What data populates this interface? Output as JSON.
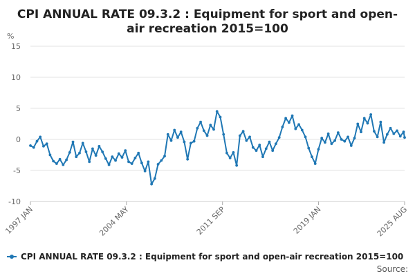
{
  "chart_data": {
    "type": "line",
    "title": "CPI ANNUAL RATE 09.3.2 : Equipment for sport and open-air recreation 2015=100",
    "title_lines": [
      "CPI ANNUAL RATE 09.3.2 : Equipment for sport and open-",
      "air recreation 2015=100"
    ],
    "ylabel": "%",
    "ylim": [
      -10,
      15
    ],
    "y_ticks": [
      15,
      10,
      5,
      0,
      -5,
      -10
    ],
    "x_tick_labels": [
      {
        "label": "1997 JAN",
        "t": 1997.0
      },
      {
        "label": "2004 MAY",
        "t": 2004.33
      },
      {
        "label": "2011 SEP",
        "t": 2011.67
      },
      {
        "label": "2019 JAN",
        "t": 2019.0
      },
      {
        "label": "2025 AUG",
        "t": 2025.58
      }
    ],
    "xlim": [
      1997.0,
      2025.58
    ],
    "grid": true,
    "series": [
      {
        "name": "CPI ANNUAL RATE 09.3.2 : Equipment for sport and open-air recreation 2015=100",
        "color": "#1f77b4",
        "points": [
          [
            1997.0,
            -1.0
          ],
          [
            1997.25,
            -1.3
          ],
          [
            1997.5,
            -0.3
          ],
          [
            1997.75,
            0.4
          ],
          [
            1998.0,
            -1.1
          ],
          [
            1998.25,
            -0.7
          ],
          [
            1998.5,
            -2.5
          ],
          [
            1998.75,
            -3.5
          ],
          [
            1999.0,
            -3.9
          ],
          [
            1999.25,
            -3.2
          ],
          [
            1999.5,
            -4.1
          ],
          [
            1999.75,
            -3.3
          ],
          [
            2000.0,
            -2.1
          ],
          [
            2000.25,
            -0.4
          ],
          [
            2000.5,
            -2.8
          ],
          [
            2000.75,
            -2.2
          ],
          [
            2001.0,
            -0.6
          ],
          [
            2001.25,
            -2.0
          ],
          [
            2001.5,
            -3.6
          ],
          [
            2001.75,
            -1.5
          ],
          [
            2002.0,
            -2.6
          ],
          [
            2002.25,
            -1.1
          ],
          [
            2002.5,
            -2.0
          ],
          [
            2002.75,
            -3.1
          ],
          [
            2003.0,
            -4.1
          ],
          [
            2003.25,
            -2.8
          ],
          [
            2003.5,
            -3.4
          ],
          [
            2003.75,
            -2.3
          ],
          [
            2004.0,
            -2.9
          ],
          [
            2004.25,
            -1.8
          ],
          [
            2004.5,
            -3.6
          ],
          [
            2004.75,
            -3.9
          ],
          [
            2005.0,
            -3.0
          ],
          [
            2005.25,
            -2.2
          ],
          [
            2005.5,
            -3.8
          ],
          [
            2005.75,
            -5.1
          ],
          [
            2006.0,
            -3.6
          ],
          [
            2006.25,
            -7.2
          ],
          [
            2006.5,
            -6.3
          ],
          [
            2006.75,
            -4.0
          ],
          [
            2007.0,
            -3.4
          ],
          [
            2007.25,
            -2.7
          ],
          [
            2007.5,
            0.8
          ],
          [
            2007.75,
            -0.2
          ],
          [
            2008.0,
            1.5
          ],
          [
            2008.25,
            0.3
          ],
          [
            2008.5,
            1.2
          ],
          [
            2008.75,
            -0.4
          ],
          [
            2009.0,
            -3.2
          ],
          [
            2009.25,
            -0.6
          ],
          [
            2009.5,
            -0.3
          ],
          [
            2009.75,
            1.8
          ],
          [
            2010.0,
            2.8
          ],
          [
            2010.25,
            1.4
          ],
          [
            2010.5,
            0.6
          ],
          [
            2010.75,
            2.3
          ],
          [
            2011.0,
            1.6
          ],
          [
            2011.25,
            4.5
          ],
          [
            2011.5,
            3.6
          ],
          [
            2011.75,
            0.8
          ],
          [
            2012.0,
            -2.2
          ],
          [
            2012.25,
            -3.0
          ],
          [
            2012.5,
            -2.1
          ],
          [
            2012.75,
            -4.2
          ],
          [
            2013.0,
            0.6
          ],
          [
            2013.25,
            1.3
          ],
          [
            2013.5,
            -0.2
          ],
          [
            2013.75,
            0.4
          ],
          [
            2014.0,
            -1.3
          ],
          [
            2014.25,
            -1.8
          ],
          [
            2014.5,
            -0.9
          ],
          [
            2014.75,
            -2.8
          ],
          [
            2015.0,
            -1.5
          ],
          [
            2015.25,
            -0.4
          ],
          [
            2015.5,
            -1.8
          ],
          [
            2015.75,
            -0.7
          ],
          [
            2016.0,
            0.3
          ],
          [
            2016.25,
            2.0
          ],
          [
            2016.5,
            3.4
          ],
          [
            2016.75,
            2.7
          ],
          [
            2017.0,
            3.8
          ],
          [
            2017.25,
            1.7
          ],
          [
            2017.5,
            2.4
          ],
          [
            2017.75,
            1.5
          ],
          [
            2018.0,
            0.4
          ],
          [
            2018.25,
            -1.4
          ],
          [
            2018.5,
            -2.8
          ],
          [
            2018.75,
            -3.9
          ],
          [
            2019.0,
            -1.6
          ],
          [
            2019.25,
            0.2
          ],
          [
            2019.5,
            -0.5
          ],
          [
            2019.75,
            0.9
          ],
          [
            2020.0,
            -0.7
          ],
          [
            2020.25,
            -0.2
          ],
          [
            2020.5,
            1.1
          ],
          [
            2020.75,
            0.0
          ],
          [
            2021.0,
            -0.3
          ],
          [
            2021.25,
            0.4
          ],
          [
            2021.5,
            -1.0
          ],
          [
            2021.75,
            0.2
          ],
          [
            2022.0,
            2.5
          ],
          [
            2022.25,
            1.2
          ],
          [
            2022.5,
            3.4
          ],
          [
            2022.75,
            2.6
          ],
          [
            2023.0,
            4.0
          ],
          [
            2023.25,
            1.3
          ],
          [
            2023.5,
            0.4
          ],
          [
            2023.75,
            2.8
          ],
          [
            2024.0,
            -0.5
          ],
          [
            2024.25,
            0.8
          ],
          [
            2024.5,
            1.8
          ],
          [
            2024.75,
            0.9
          ],
          [
            2025.0,
            1.4
          ],
          [
            2025.25,
            0.5
          ],
          [
            2025.5,
            1.2
          ],
          [
            2025.58,
            0.3
          ]
        ]
      }
    ],
    "legend_label": "CPI ANNUAL RATE 09.3.2 : Equipment for sport and open-air recreation 2015=100",
    "source_label": "Source:"
  }
}
